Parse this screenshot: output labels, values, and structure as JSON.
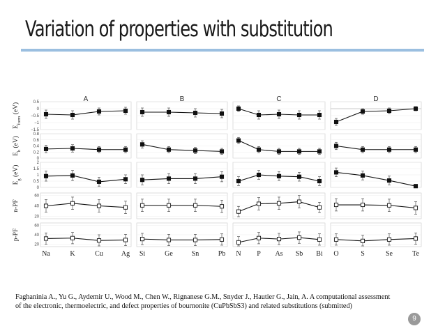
{
  "slide": {
    "title": "Variation of properties with substitution",
    "citation_line1": "Faghaninia A., Yu G., Aydemir U., Wood M., Chen W., Rignanese G.M., Snyder J., Hautier G., Jain, A. A computational assessment",
    "citation_line2": "of the electronic, thermoelectric, and defect properties of bournonite (CuPbSbS3) and related substitutions (submitted)",
    "page_number": "9",
    "accent_color": "#9bbfe0"
  },
  "chart_data": {
    "type": "line",
    "groups": [
      {
        "label": "A",
        "categories": [
          "Na",
          "K",
          "Cu",
          "Ag"
        ]
      },
      {
        "label": "B",
        "categories": [
          "Si",
          "Ge",
          "Sn",
          "Pb"
        ]
      },
      {
        "label": "C",
        "categories": [
          "N",
          "P",
          "As",
          "Sb",
          "Bi"
        ]
      },
      {
        "label": "D",
        "categories": [
          "O",
          "S",
          "Se",
          "Te"
        ]
      }
    ],
    "rows": [
      {
        "ylabel_main": "E",
        "ylabel_sub": "form",
        "ylabel_unit": " (eV)",
        "marker": "filled",
        "ylim": [
          -1.5,
          0.5
        ],
        "ticks": [
          0.5,
          0,
          -0.5,
          -1,
          -1.5
        ],
        "tick_labels": [
          "0.5",
          "0",
          "−0.5",
          "−1",
          "−1.5"
        ],
        "series": [
          [
            -0.4,
            -0.45,
            -0.2,
            -0.15
          ],
          [
            -0.25,
            -0.25,
            -0.3,
            -0.35
          ],
          [
            0.0,
            -0.45,
            -0.4,
            -0.45,
            -0.45
          ],
          [
            -0.95,
            -0.2,
            -0.15,
            0.0
          ]
        ],
        "errors": [
          [
            0.3,
            0.3,
            0.25,
            0.25
          ],
          [
            0.3,
            0.3,
            0.3,
            0.3
          ],
          [
            0.2,
            0.3,
            0.3,
            0.3,
            0.3
          ],
          [
            0.25,
            0.2,
            0.2,
            0.15
          ]
        ]
      },
      {
        "ylabel_main": "E",
        "ylabel_sub": "h",
        "ylabel_unit": " (eV)",
        "marker": "filled",
        "ylim": [
          0,
          0.8
        ],
        "ticks": [
          0.8,
          0.6,
          0.4,
          0.2,
          0
        ],
        "tick_labels": [
          "0.8",
          "0.6",
          "0.4",
          "0.2",
          "0"
        ],
        "series": [
          [
            0.3,
            0.32,
            0.28,
            0.28
          ],
          [
            0.45,
            0.28,
            0.25,
            0.22
          ],
          [
            0.58,
            0.28,
            0.22,
            0.22,
            0.22
          ],
          [
            0.4,
            0.28,
            0.28,
            0.28
          ]
        ],
        "errors": [
          [
            0.12,
            0.12,
            0.1,
            0.1
          ],
          [
            0.12,
            0.1,
            0.1,
            0.1
          ],
          [
            0.1,
            0.1,
            0.1,
            0.1,
            0.1
          ],
          [
            0.12,
            0.1,
            0.1,
            0.1
          ]
        ]
      },
      {
        "ylabel_main": "E",
        "ylabel_sub": "g",
        "ylabel_unit": " (eV)",
        "marker": "filled",
        "ylim": [
          0,
          2
        ],
        "ticks": [
          2,
          1.5,
          1,
          0.5,
          0
        ],
        "tick_labels": [
          "2",
          "1.5",
          "1",
          "0.5",
          "0"
        ],
        "series": [
          [
            0.9,
            0.95,
            0.45,
            0.65
          ],
          [
            0.6,
            0.7,
            0.7,
            0.85
          ],
          [
            0.5,
            1.0,
            0.9,
            0.85,
            0.5
          ],
          [
            1.2,
            0.95,
            0.55,
            0.1
          ]
        ],
        "errors": [
          [
            0.4,
            0.4,
            0.35,
            0.35
          ],
          [
            0.4,
            0.4,
            0.4,
            0.4
          ],
          [
            0.35,
            0.35,
            0.35,
            0.35,
            0.35
          ],
          [
            0.35,
            0.35,
            0.35,
            0.1
          ]
        ]
      },
      {
        "ylabel_main": "n-PF",
        "ylabel_sub": "",
        "ylabel_unit": "",
        "marker": "open",
        "ylim": [
          15,
          65
        ],
        "ticks": [
          60,
          40,
          20
        ],
        "tick_labels": [
          "60",
          "40",
          "20"
        ],
        "series": [
          [
            40,
            45,
            40,
            37
          ],
          [
            41,
            41,
            41,
            39
          ],
          [
            29,
            44,
            45,
            48,
            37
          ],
          [
            42,
            42,
            41,
            36
          ]
        ],
        "errors": [
          [
            12,
            12,
            12,
            12
          ],
          [
            12,
            12,
            12,
            12
          ],
          [
            10,
            12,
            12,
            12,
            10
          ],
          [
            12,
            12,
            12,
            12
          ]
        ]
      },
      {
        "ylabel_main": "p-PF",
        "ylabel_sub": "",
        "ylabel_unit": "",
        "marker": "open",
        "ylim": [
          15,
          65
        ],
        "ticks": [
          60,
          40,
          20
        ],
        "tick_labels": [
          "60",
          "40",
          "20"
        ],
        "series": [
          [
            32,
            33,
            28,
            29
          ],
          [
            31,
            29,
            29,
            30
          ],
          [
            24,
            33,
            31,
            34,
            30
          ],
          [
            30,
            27,
            30,
            32
          ]
        ],
        "errors": [
          [
            12,
            12,
            12,
            12
          ],
          [
            12,
            12,
            12,
            12
          ],
          [
            12,
            12,
            12,
            12,
            12
          ],
          [
            12,
            12,
            12,
            12
          ]
        ]
      }
    ]
  }
}
